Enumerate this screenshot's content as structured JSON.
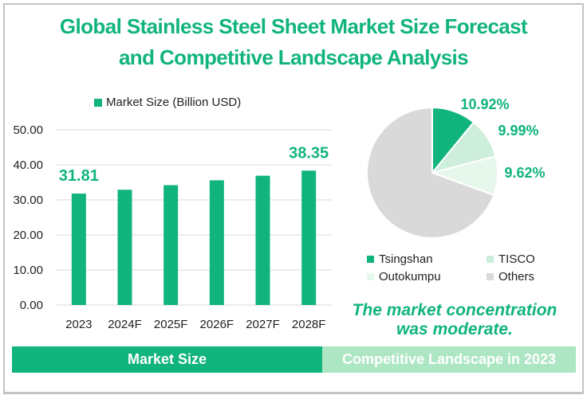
{
  "title_line1": "Global Stainless Steel Sheet Market Size Forecast",
  "title_line2": "and Competitive Landscape Analysis",
  "colors": {
    "accent": "#10b47c",
    "tisco": "#cdeedb",
    "outokumpu": "#e6f7ec",
    "others": "#d9d9d9",
    "right_band": "#ade6c3",
    "grid": "#d9d9d9"
  },
  "chart_data": [
    {
      "type": "bar",
      "title": "",
      "legend": [
        "Market Size (Billion USD)"
      ],
      "legend_position": "top",
      "categories": [
        "2023",
        "2024F",
        "2025F",
        "2026F",
        "2027F",
        "2028F"
      ],
      "series": [
        {
          "name": "Market Size (Billion USD)",
          "values": [
            31.81,
            32.9,
            34.2,
            35.6,
            36.9,
            38.35
          ]
        }
      ],
      "data_labels": [
        {
          "category": "2023",
          "text": "31.81"
        },
        {
          "category": "2028F",
          "text": "38.35"
        }
      ],
      "ylim": [
        0,
        50
      ],
      "yticks": [
        "0.00",
        "10.00",
        "20.00",
        "30.00",
        "40.00",
        "50.00"
      ],
      "grid": true,
      "xlabel": "",
      "ylabel": ""
    },
    {
      "type": "pie",
      "title": "",
      "legend_position": "bottom",
      "slices": [
        {
          "label": "Tsingshan",
          "value": 10.92,
          "text": "10.92%"
        },
        {
          "label": "TISCO",
          "value": 9.99,
          "text": "9.99%"
        },
        {
          "label": "Outokumpu",
          "value": 9.62,
          "text": "9.62%"
        },
        {
          "label": "Others",
          "value": 69.47,
          "text": ""
        }
      ]
    }
  ],
  "note_line1": "The market concentration",
  "note_line2": "was moderate.",
  "sections": {
    "left": "Market Size",
    "right": "Competitive Landscape in 2023"
  }
}
